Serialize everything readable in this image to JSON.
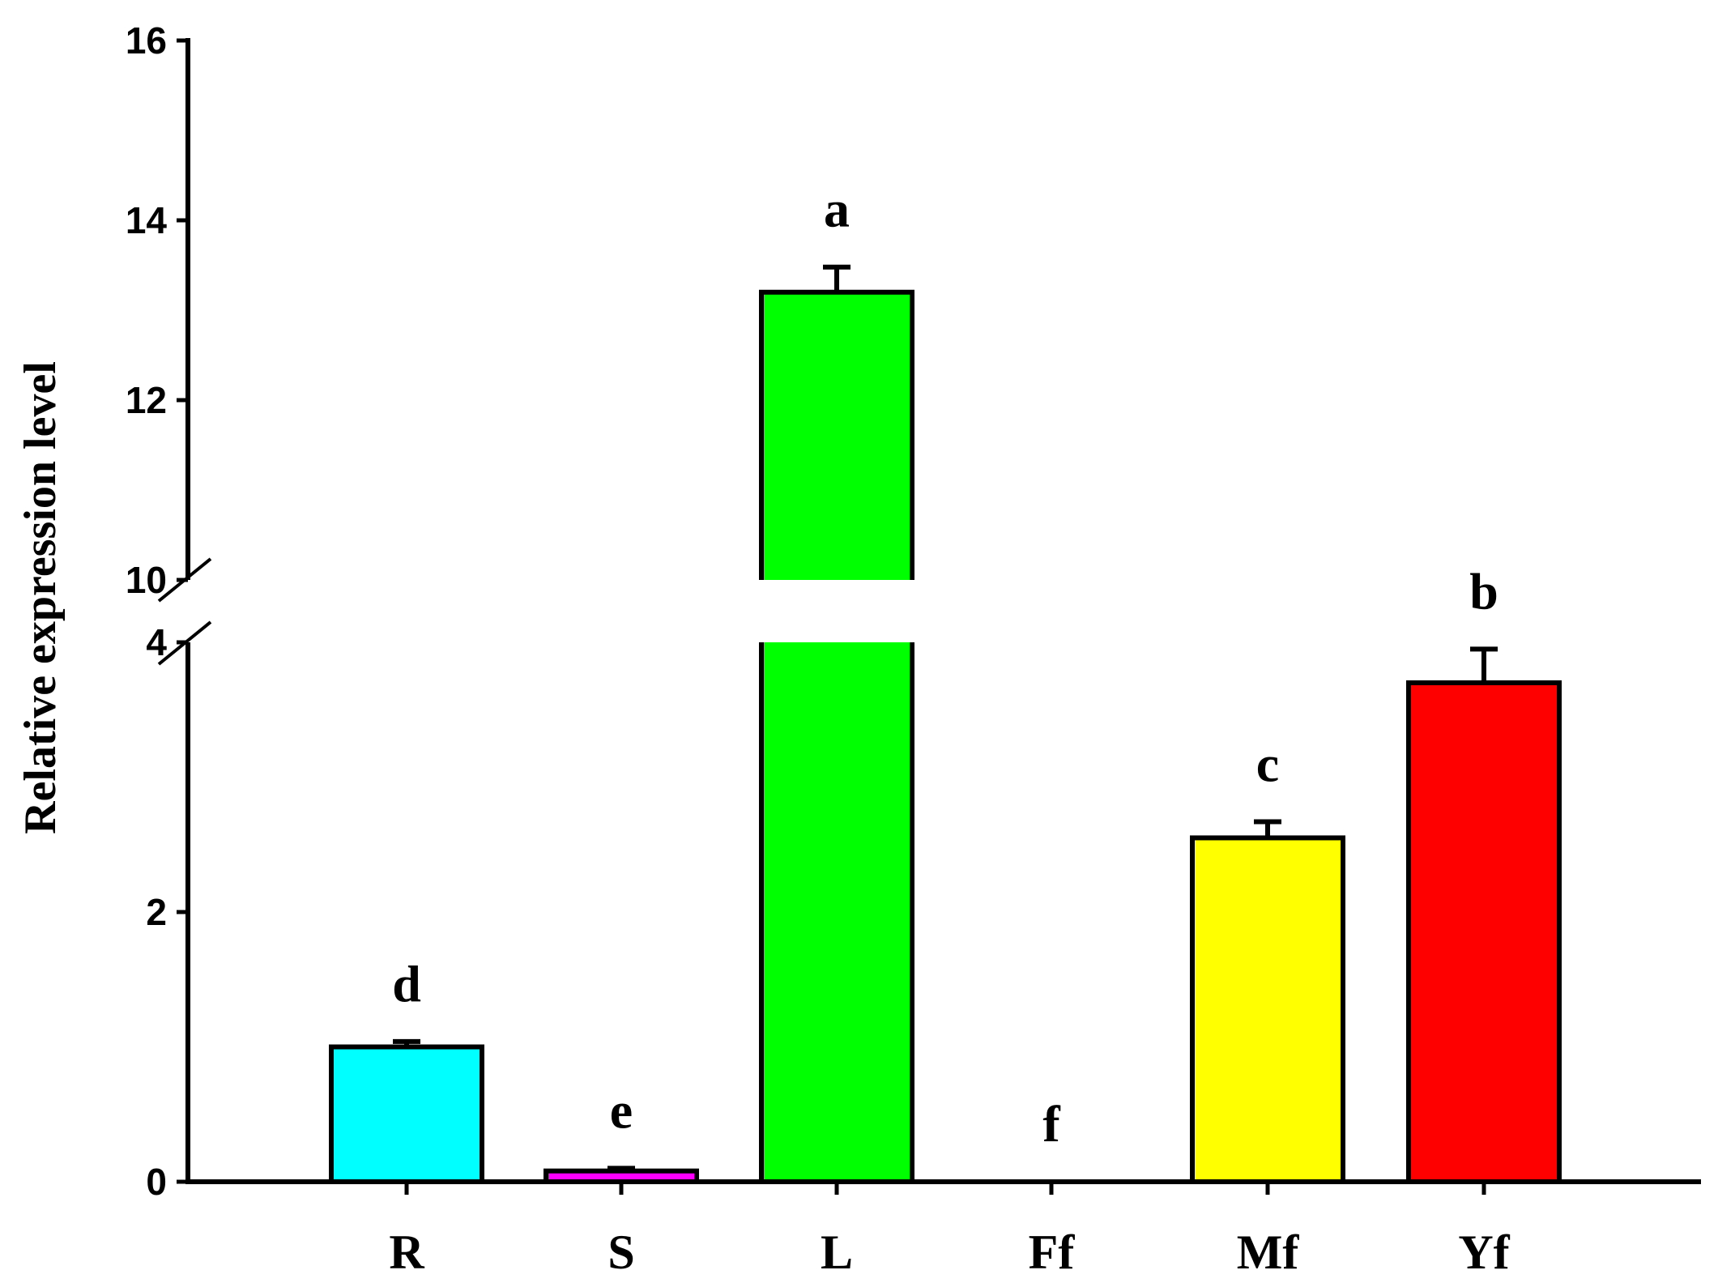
{
  "chart_data": {
    "type": "bar",
    "title": "",
    "xlabel": "",
    "ylabel": "Relative expression level",
    "categories": [
      "R",
      "S",
      "L",
      "Ff",
      "Mf",
      "Yf"
    ],
    "values": [
      1.0,
      0.08,
      13.2,
      0.01,
      2.55,
      3.7
    ],
    "errors": [
      0.04,
      0.02,
      0.28,
      0.0,
      0.12,
      0.25
    ],
    "significance": [
      "d",
      "e",
      "a",
      "f",
      "c",
      "b"
    ],
    "colors": [
      "#00ffff",
      "#ff00ff",
      "#00ff00",
      "#ffffff",
      "#ffff00",
      "#ff0000"
    ],
    "y_axis_break": {
      "lower_segment": [
        0,
        4
      ],
      "upper_segment": [
        10,
        16
      ]
    },
    "yticks_lower": [
      "0",
      "2",
      "4"
    ],
    "yticks_upper": [
      "10",
      "12",
      "14",
      "16"
    ],
    "grid": false,
    "legend": "none"
  }
}
